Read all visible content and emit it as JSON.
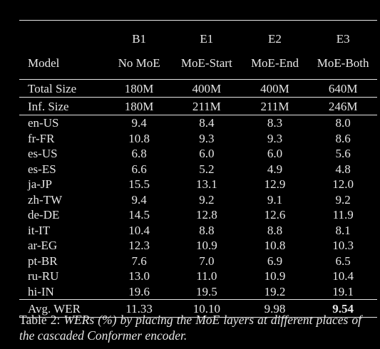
{
  "table": {
    "columns": [
      "B1",
      "E1",
      "E2",
      "E3"
    ],
    "model_label": "Model",
    "column_descriptions": [
      "No MoE",
      "MoE-Start",
      "MoE-End",
      "MoE-Both"
    ],
    "total_size": {
      "label": "Total Size",
      "values": [
        "180M",
        "400M",
        "400M",
        "640M"
      ]
    },
    "inf_size": {
      "label": "Inf. Size",
      "values": [
        "180M",
        "211M",
        "211M",
        "246M"
      ]
    },
    "rows": [
      {
        "label": "en-US",
        "values": [
          "9.4",
          "8.4",
          "8.3",
          "8.0"
        ]
      },
      {
        "label": "fr-FR",
        "values": [
          "10.8",
          "9.3",
          "9.3",
          "8.6"
        ]
      },
      {
        "label": "es-US",
        "values": [
          "6.8",
          "6.0",
          "6.0",
          "5.6"
        ]
      },
      {
        "label": "es-ES",
        "values": [
          "6.6",
          "5.2",
          "4.9",
          "4.8"
        ]
      },
      {
        "label": "ja-JP",
        "values": [
          "15.5",
          "13.1",
          "12.9",
          "12.0"
        ]
      },
      {
        "label": "zh-TW",
        "values": [
          "9.4",
          "9.2",
          "9.1",
          "9.2"
        ]
      },
      {
        "label": "de-DE",
        "values": [
          "14.5",
          "12.8",
          "12.6",
          "11.9"
        ]
      },
      {
        "label": "it-IT",
        "values": [
          "10.4",
          "8.8",
          "8.8",
          "8.1"
        ]
      },
      {
        "label": "ar-EG",
        "values": [
          "12.3",
          "10.9",
          "10.8",
          "10.3"
        ]
      },
      {
        "label": "pt-BR",
        "values": [
          "7.6",
          "7.0",
          "6.9",
          "6.5"
        ]
      },
      {
        "label": "ru-RU",
        "values": [
          "13.0",
          "11.0",
          "10.9",
          "10.4"
        ]
      },
      {
        "label": "hi-IN",
        "values": [
          "19.6",
          "19.5",
          "19.2",
          "19.1"
        ]
      }
    ],
    "avg": {
      "label": "Avg. WER",
      "values": [
        "11.33",
        "10.10",
        "9.98",
        "9.54"
      ]
    }
  },
  "caption": {
    "prefix": "Table 2: ",
    "text": "WERs (%) by placing the MoE layers at different places of the cascaded Conformer encoder."
  }
}
